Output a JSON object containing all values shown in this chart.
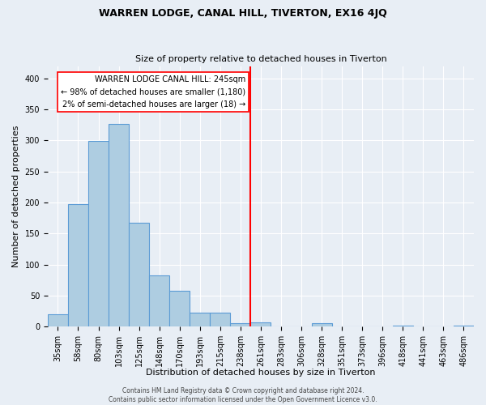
{
  "title": "WARREN LODGE, CANAL HILL, TIVERTON, EX16 4JQ",
  "subtitle": "Size of property relative to detached houses in Tiverton",
  "xlabel": "Distribution of detached houses by size in Tiverton",
  "ylabel": "Number of detached properties",
  "bar_labels": [
    "35sqm",
    "58sqm",
    "80sqm",
    "103sqm",
    "125sqm",
    "148sqm",
    "170sqm",
    "193sqm",
    "215sqm",
    "238sqm",
    "261sqm",
    "283sqm",
    "306sqm",
    "328sqm",
    "351sqm",
    "373sqm",
    "396sqm",
    "418sqm",
    "441sqm",
    "463sqm",
    "486sqm"
  ],
  "bar_values": [
    20,
    197,
    299,
    327,
    167,
    83,
    57,
    22,
    23,
    5,
    7,
    0,
    0,
    5,
    0,
    0,
    0,
    2,
    0,
    0,
    2
  ],
  "bar_color": "#aecde1",
  "bar_edge_color": "#5b9bd5",
  "vline_x_index": 9,
  "vline_color": "red",
  "annotation_title": "WARREN LODGE CANAL HILL: 245sqm",
  "annotation_line1": "← 98% of detached houses are smaller (1,180)",
  "annotation_line2": "2% of semi-detached houses are larger (18) →",
  "annotation_box_color": "#ffffff",
  "annotation_box_edge": "red",
  "ylim": [
    0,
    420
  ],
  "yticks": [
    0,
    50,
    100,
    150,
    200,
    250,
    300,
    350,
    400
  ],
  "footer1": "Contains HM Land Registry data © Crown copyright and database right 2024.",
  "footer2": "Contains public sector information licensed under the Open Government Licence v3.0.",
  "background_color": "#e8eef5",
  "plot_bg_color": "#e8eef5",
  "title_fontsize": 9,
  "subtitle_fontsize": 8,
  "xlabel_fontsize": 8,
  "ylabel_fontsize": 8,
  "tick_fontsize": 7,
  "annotation_fontsize": 7,
  "footer_fontsize": 5.5
}
